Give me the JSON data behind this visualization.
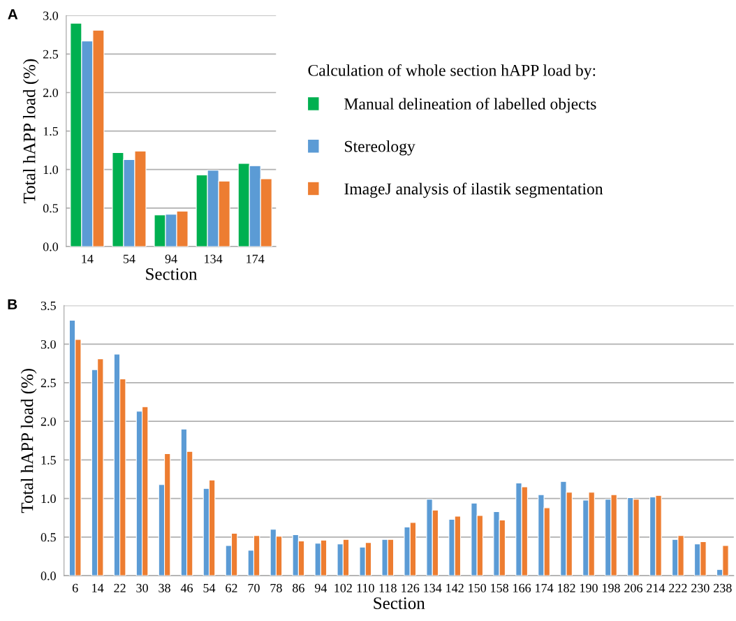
{
  "chart_data": [
    {
      "type": "bar",
      "annotations": [
        "A"
      ],
      "xlabel": "Section",
      "ylabel": "Total hAPP load (%)",
      "legend_title": "Calculation of whole section hAPP load by:",
      "legend": "right",
      "grid": "y",
      "categories": [
        "14",
        "54",
        "94",
        "134",
        "174"
      ],
      "ylim": [
        0,
        3.0
      ],
      "yticks": [
        {
          "value": 0,
          "label": "0.0"
        },
        {
          "value": 0.5,
          "label": "0.5"
        },
        {
          "value": 1.0,
          "label": "1.0"
        },
        {
          "value": 1.5,
          "label": "1.5"
        },
        {
          "value": 2.0,
          "label": "2.0"
        },
        {
          "value": 2.5,
          "label": "2.5"
        },
        {
          "value": 3.0,
          "label": "3.0"
        }
      ],
      "series": [
        {
          "name": "Manual delineation of labelled objects",
          "color": "#00b050",
          "values": [
            2.9,
            1.22,
            0.41,
            0.93,
            1.08
          ]
        },
        {
          "name": "Stereology",
          "color": "#5b9bd5",
          "values": [
            2.67,
            1.13,
            0.42,
            0.99,
            1.05
          ]
        },
        {
          "name": "ImageJ analysis of ilastik segmentation",
          "color": "#ed7d31",
          "values": [
            2.81,
            1.24,
            0.46,
            0.85,
            0.88
          ]
        }
      ]
    },
    {
      "type": "bar",
      "annotations": [
        "B"
      ],
      "xlabel": "Section",
      "ylabel": "Total hAPP load (%)",
      "grid": "y",
      "categories": [
        "6",
        "14",
        "22",
        "30",
        "38",
        "46",
        "54",
        "62",
        "70",
        "78",
        "86",
        "94",
        "102",
        "110",
        "118",
        "126",
        "134",
        "142",
        "150",
        "158",
        "166",
        "174",
        "182",
        "190",
        "198",
        "206",
        "214",
        "222",
        "230",
        "238"
      ],
      "ylim": [
        0,
        3.5
      ],
      "yticks": [
        {
          "value": 0,
          "label": "0.0"
        },
        {
          "value": 0.5,
          "label": "0.5"
        },
        {
          "value": 1.0,
          "label": "1.0"
        },
        {
          "value": 1.5,
          "label": "1.5"
        },
        {
          "value": 2.0,
          "label": "2.0"
        },
        {
          "value": 2.5,
          "label": "2.5"
        },
        {
          "value": 3.0,
          "label": "3.0"
        },
        {
          "value": 3.5,
          "label": "3.5"
        }
      ],
      "series": [
        {
          "color": "#5b9bd5",
          "values": [
            3.31,
            2.67,
            2.87,
            2.13,
            1.18,
            1.9,
            1.13,
            0.39,
            0.33,
            0.6,
            0.53,
            0.42,
            0.41,
            0.37,
            0.47,
            0.63,
            0.99,
            0.73,
            0.94,
            0.83,
            1.2,
            1.05,
            1.22,
            0.98,
            0.99,
            1.01,
            1.02,
            0.47,
            0.41,
            0.08
          ]
        },
        {
          "color": "#ed7d31",
          "values": [
            3.06,
            2.81,
            2.55,
            2.19,
            1.58,
            1.61,
            1.24,
            0.55,
            0.52,
            0.51,
            0.45,
            0.46,
            0.47,
            0.43,
            0.47,
            0.69,
            0.85,
            0.77,
            0.78,
            0.72,
            1.15,
            0.88,
            1.08,
            1.08,
            1.05,
            0.99,
            1.04,
            0.52,
            0.44,
            0.39
          ]
        }
      ]
    }
  ]
}
